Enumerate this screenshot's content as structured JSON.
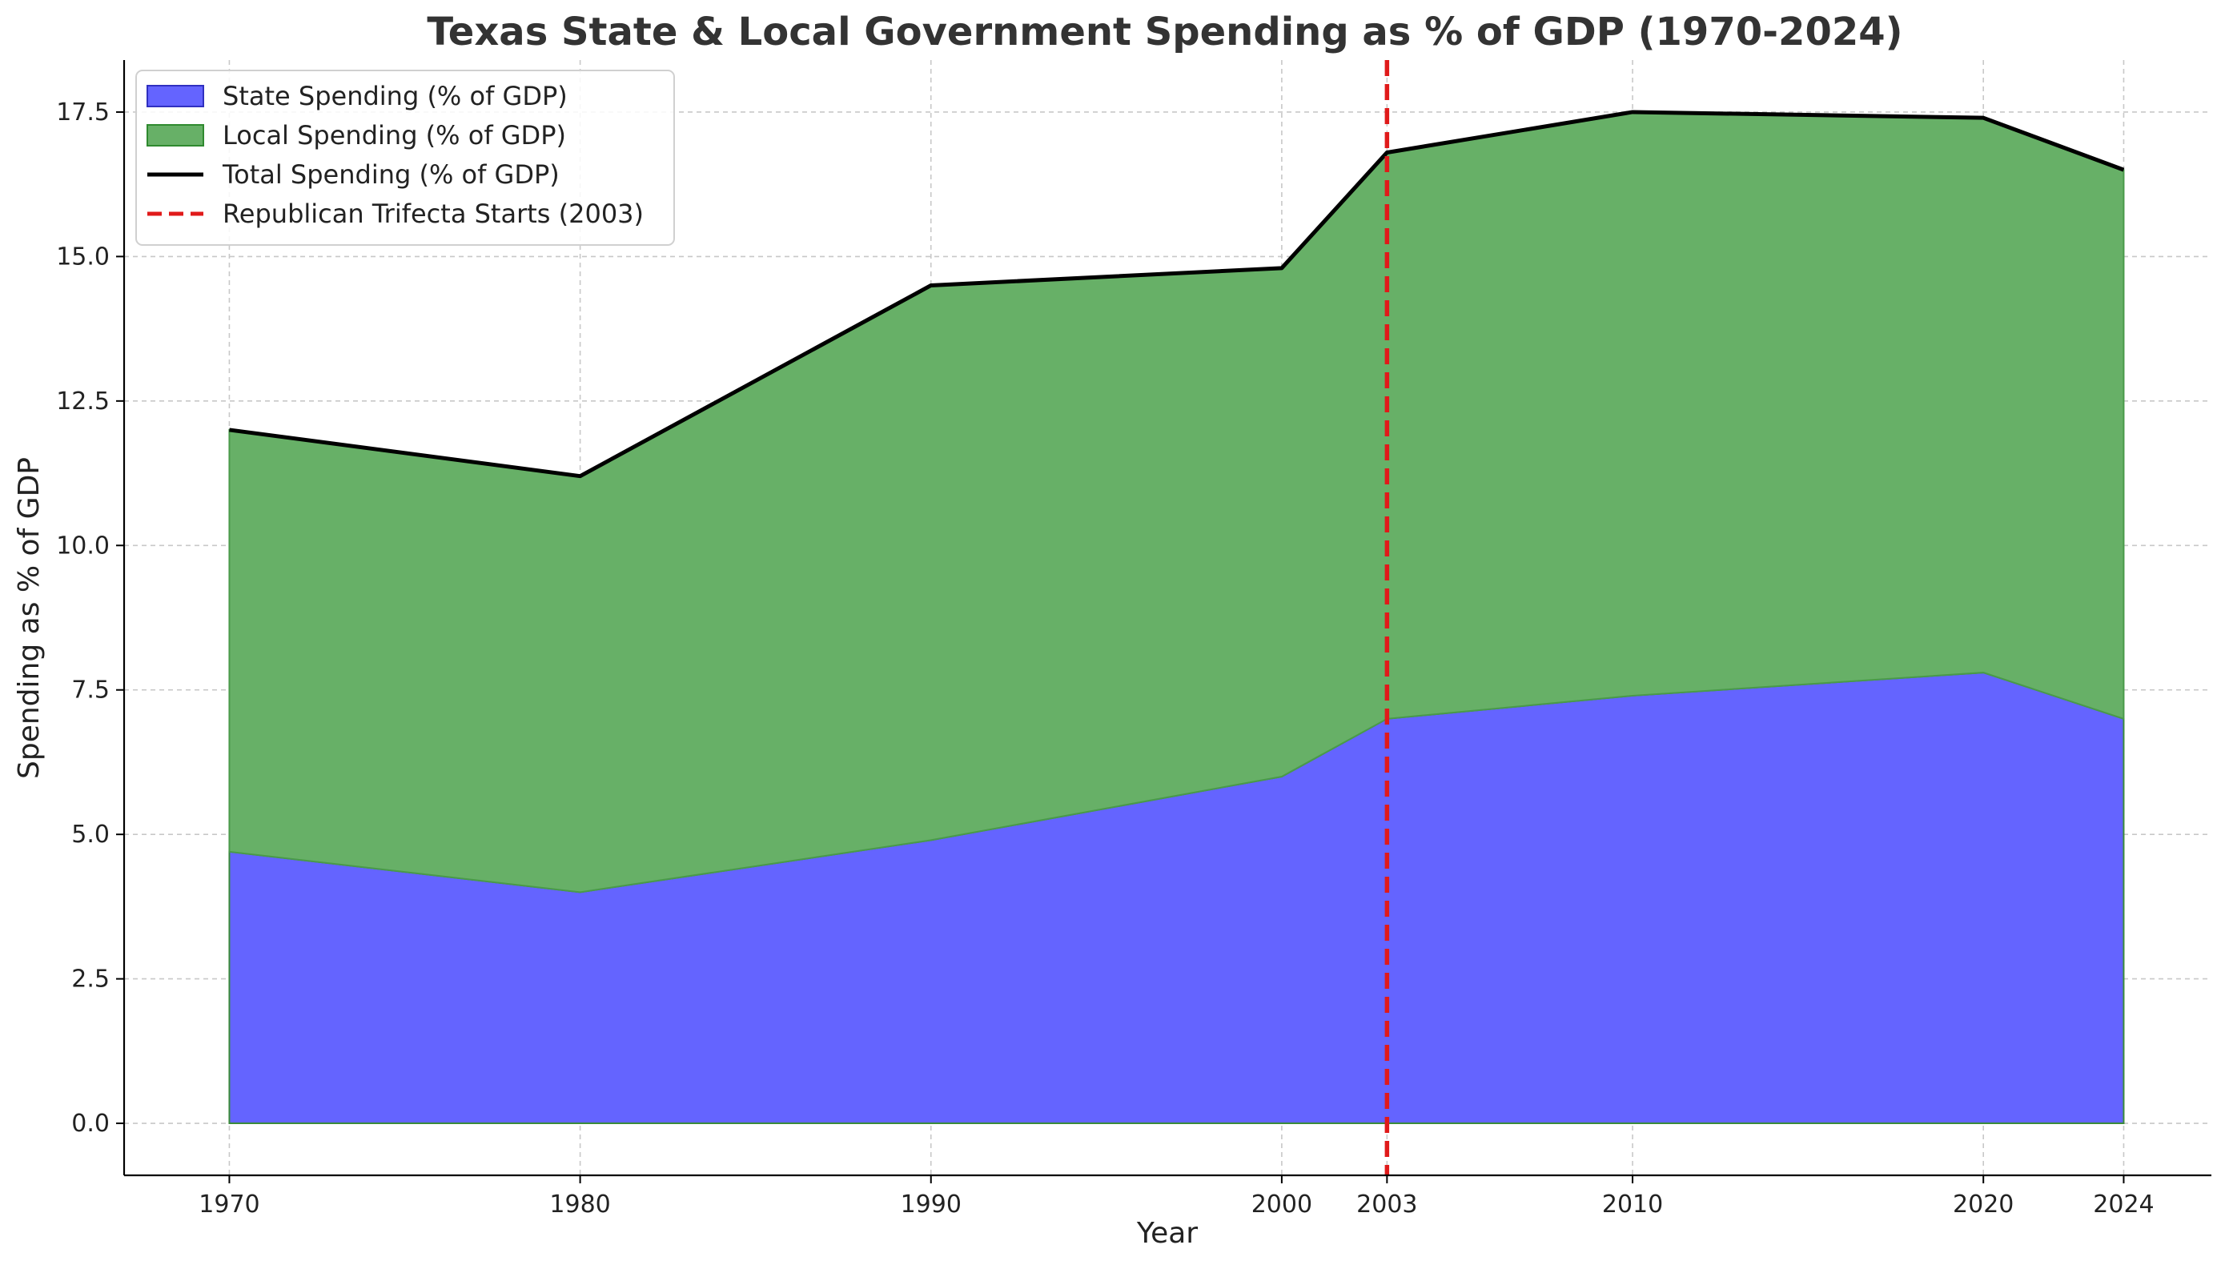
{
  "chart_data": {
    "type": "area",
    "stacked": true,
    "title": "Texas State & Local Government Spending as % of GDP (1970-2024)",
    "xlabel": "Year",
    "ylabel": "Spending as % of GDP",
    "x": [
      1970,
      1980,
      1990,
      2000,
      2003,
      2010,
      2020,
      2024
    ],
    "x_ticks": [
      1970,
      1980,
      1990,
      2000,
      2003,
      2010,
      2020,
      2024
    ],
    "y_ticks": [
      0.0,
      2.5,
      5.0,
      7.5,
      10.0,
      12.5,
      15.0,
      17.5
    ],
    "xlim": [
      1967,
      2026.5
    ],
    "ylim": [
      -0.9,
      18.4
    ],
    "grid": true,
    "legend_placement": "top-left",
    "series": [
      {
        "name": "State Spending (% of GDP)",
        "kind": "area",
        "color": "#6464ff",
        "values": [
          4.7,
          4.0,
          4.9,
          6.0,
          7.0,
          7.4,
          7.8,
          7.0
        ]
      },
      {
        "name": "Local Spending (% of GDP)",
        "kind": "area",
        "color": "#67b067",
        "values": [
          7.3,
          7.2,
          9.6,
          8.8,
          9.8,
          10.1,
          9.6,
          9.5
        ]
      },
      {
        "name": "Total Spending (% of GDP)",
        "kind": "line",
        "color": "#000000",
        "values": [
          12.0,
          11.2,
          14.5,
          14.8,
          16.8,
          17.5,
          17.4,
          16.5
        ]
      }
    ],
    "annotations": [
      {
        "name": "Republican Trifecta Starts (2003)",
        "kind": "vline",
        "x": 2003,
        "color": "#e01a1a"
      }
    ]
  }
}
